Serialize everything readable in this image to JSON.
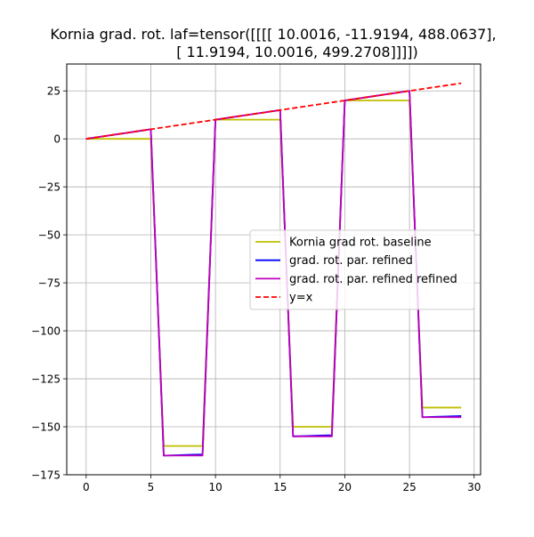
{
  "chart_data": {
    "type": "line",
    "title_lines": [
      "Kornia grad. rot. laf=tensor([[[[ 10.0016, -11.9194, 488.0637],",
      "[ 11.9194,  10.0016, 499.2708]]]])"
    ],
    "xlabel": "",
    "ylabel": "",
    "xlim": [
      -1.5,
      30.5
    ],
    "ylim": [
      -175,
      39
    ],
    "xticks": [
      0,
      5,
      10,
      15,
      20,
      25,
      30
    ],
    "yticks": [
      25,
      0,
      -25,
      -50,
      -75,
      -100,
      -125,
      -150,
      -175
    ],
    "xtick_labels": [
      "0",
      "5",
      "10",
      "15",
      "20",
      "25",
      "30"
    ],
    "ytick_labels": [
      "25",
      "0",
      "−25",
      "−50",
      "−75",
      "−100",
      "−125",
      "−150",
      "−175"
    ],
    "grid": true,
    "legend_position": "center-right",
    "series": [
      {
        "name": "Kornia grad rot. baseline",
        "color": "#bfbf00",
        "dash": "solid",
        "x": [
          0,
          1,
          2,
          3,
          4,
          5,
          6,
          7,
          8,
          9,
          10,
          11,
          12,
          13,
          14,
          15,
          16,
          17,
          18,
          19,
          20,
          21,
          22,
          23,
          24,
          25,
          26,
          27,
          28,
          29
        ],
        "y": [
          0,
          0,
          0,
          0,
          0,
          0,
          -160,
          -160,
          -160,
          -160,
          10,
          10,
          10,
          10,
          10,
          10,
          -150,
          -150,
          -150,
          -150,
          20,
          20,
          20,
          20,
          20,
          20,
          -140,
          -140,
          -140,
          -140
        ]
      },
      {
        "name": "grad. rot. par. refined",
        "color": "#0000ff",
        "dash": "solid",
        "x": [
          0,
          1,
          2,
          3,
          4,
          5,
          6,
          7,
          8,
          9,
          10,
          11,
          12,
          13,
          14,
          15,
          16,
          17,
          18,
          19,
          20,
          21,
          22,
          23,
          24,
          25,
          26,
          27,
          28,
          29
        ],
        "y": [
          0,
          1,
          2,
          3,
          4,
          5,
          -165,
          -164.8,
          -164.6,
          -164.4,
          10,
          11,
          12,
          13,
          14,
          15,
          -155,
          -154.8,
          -154.6,
          -154.4,
          20,
          21,
          22,
          23,
          24,
          25,
          -145,
          -144.8,
          -144.6,
          -144.4
        ]
      },
      {
        "name": "grad. rot. par. refined refined",
        "color": "#bf00bf",
        "dash": "solid",
        "x": [
          0,
          1,
          2,
          3,
          4,
          5,
          6,
          7,
          8,
          9,
          10,
          11,
          12,
          13,
          14,
          15,
          16,
          17,
          18,
          19,
          20,
          21,
          22,
          23,
          24,
          25,
          26,
          27,
          28,
          29
        ],
        "y": [
          0,
          1,
          2,
          3,
          4,
          5,
          -165,
          -165,
          -165,
          -165,
          10,
          11,
          12,
          13,
          14,
          15,
          -155,
          -155,
          -155,
          -155,
          20,
          21,
          22,
          23,
          24,
          25,
          -145,
          -145,
          -145,
          -145
        ]
      },
      {
        "name": "y=x",
        "color": "#ff0000",
        "dash": "dashed",
        "x": [
          0,
          29
        ],
        "y": [
          0,
          29
        ]
      }
    ]
  }
}
